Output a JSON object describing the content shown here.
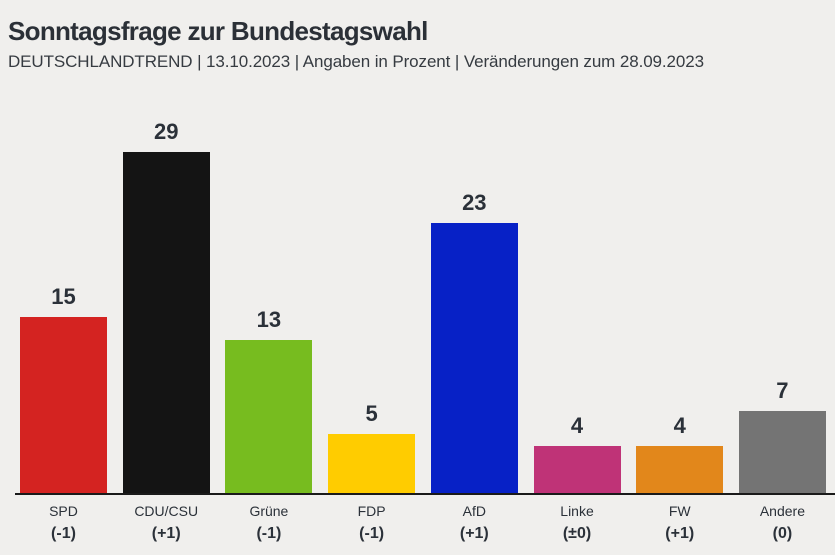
{
  "header": {
    "title": "Sonntagsfrage zur Bundestagswahl",
    "subtitle": "DEUTSCHLANDTREND | 13.10.2023 | Angaben in Prozent | Veränderungen zum 28.09.2023"
  },
  "chart_data": {
    "type": "bar",
    "title": "Sonntagsfrage zur Bundestagswahl",
    "subtitle": "DEUTSCHLANDTREND | 13.10.2023 | Angaben in Prozent | Veränderungen zum 28.09.2023",
    "categories": [
      "SPD",
      "CDU/CSU",
      "Grüne",
      "FDP",
      "AfD",
      "Linke",
      "FW",
      "Andere"
    ],
    "values": [
      15,
      29,
      13,
      5,
      23,
      4,
      4,
      7
    ],
    "changes": [
      "(-1)",
      "(+1)",
      "(-1)",
      "(-1)",
      "(+1)",
      "(±0)",
      "(+1)",
      "(0)"
    ],
    "colors": [
      "#d42321",
      "#141414",
      "#77bc1f",
      "#ffcc00",
      "#0721c6",
      "#bf3377",
      "#e2871b",
      "#747474"
    ],
    "xlabel": "",
    "ylabel": "",
    "ylim": [
      0,
      29
    ],
    "unit": "Prozent",
    "grid": false,
    "legend": false,
    "background": "#f0efed",
    "baseline_color": "#1a1a1a",
    "text_color": "#2b3139"
  }
}
